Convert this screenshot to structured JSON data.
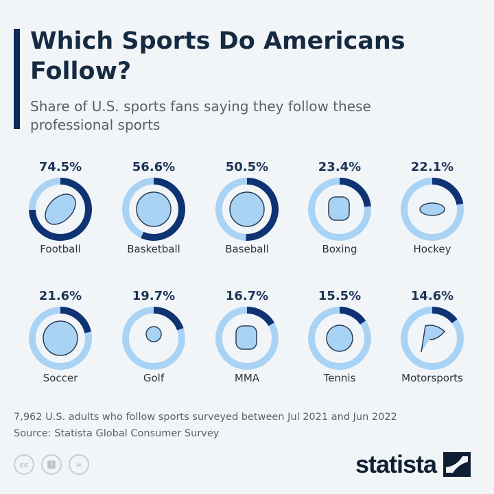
{
  "title": "Which Sports Do Americans Follow?",
  "subtitle": "Share of U.S. sports fans saying they follow these professional sports",
  "note": "7,962 U.S. adults who follow sports surveyed between Jul 2021 and Jun 2022",
  "source": "Source: Statista Global Consumer Survey",
  "logo": "statista",
  "license_icons": [
    "cc-icon",
    "attribution-icon",
    "no-derivatives-icon"
  ],
  "colors": {
    "filled": "#0f3273",
    "remaining": "#a9d3f5",
    "icon_fill": "#a9d3f5",
    "text_value": "#1c3556"
  },
  "chart_data": {
    "type": "donut",
    "unit": "%",
    "categories": [
      "Football",
      "Basketball",
      "Baseball",
      "Boxing",
      "Hockey",
      "Soccer",
      "Golf",
      "MMA",
      "Tennis",
      "Motorsports"
    ],
    "values": [
      74.5,
      56.6,
      50.5,
      23.4,
      22.1,
      21.6,
      19.7,
      16.7,
      15.5,
      14.6
    ],
    "labels": [
      "74.5%",
      "56.6%",
      "50.5%",
      "23.4%",
      "22.1%",
      "21.6%",
      "19.7%",
      "16.7%",
      "15.5%",
      "14.6%"
    ],
    "icons": [
      "football-icon",
      "basketball-icon",
      "baseball-icon",
      "boxing-glove-icon",
      "hockey-puck-icon",
      "soccer-ball-icon",
      "golf-ball-icon",
      "mma-glove-icon",
      "tennis-ball-icon",
      "checkered-flag-icon"
    ],
    "range": [
      0,
      100
    ]
  }
}
